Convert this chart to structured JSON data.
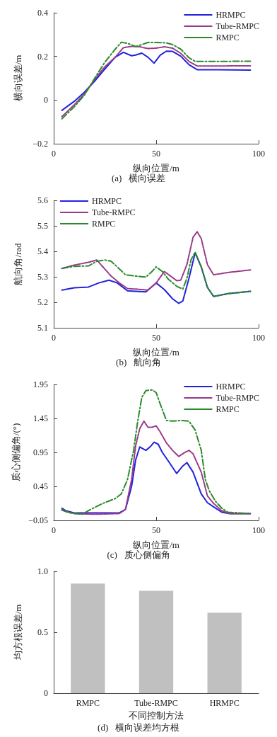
{
  "chart_data": [
    {
      "type": "line",
      "title": "(a)   横向误差",
      "xlabel": "纵向位置/m",
      "ylabel": "横向误差/m",
      "xlim": [
        0,
        100
      ],
      "xticks": [
        0,
        50,
        100
      ],
      "ylim": [
        -0.2,
        0.4
      ],
      "yticks": [
        -0.2,
        0,
        0.2,
        0.4
      ],
      "grid": false,
      "legend": "top right",
      "marker": "none",
      "series": [
        {
          "name": "HRMPC",
          "color": "#2222dd",
          "line_style": "solid",
          "x": [
            4,
            10,
            15,
            20,
            25,
            30,
            34,
            38,
            40,
            43,
            46,
            49,
            52,
            55,
            58,
            62,
            66,
            70,
            80,
            96
          ],
          "values": [
            -0.047,
            -0.006,
            0.036,
            0.087,
            0.143,
            0.196,
            0.219,
            0.203,
            0.206,
            0.215,
            0.196,
            0.169,
            0.206,
            0.224,
            0.223,
            0.201,
            0.162,
            0.139,
            0.139,
            0.137
          ]
        },
        {
          "name": "Tube-RMPC",
          "color": "#993a8a",
          "line_style": "dashed",
          "x": [
            4,
            10,
            15,
            20,
            25,
            30,
            34,
            38,
            42,
            46,
            50,
            54,
            58,
            62,
            66,
            70,
            80,
            96
          ],
          "values": [
            -0.076,
            -0.022,
            0.028,
            0.095,
            0.153,
            0.196,
            0.24,
            0.246,
            0.244,
            0.236,
            0.238,
            0.244,
            0.238,
            0.214,
            0.177,
            0.156,
            0.156,
            0.157
          ]
        },
        {
          "name": "RMPC",
          "color": "#2a8a2a",
          "line_style": "dashdot",
          "x": [
            4,
            10,
            15,
            20,
            25,
            30,
            33,
            36,
            40,
            43,
            46,
            50,
            55,
            58,
            62,
            66,
            69,
            80,
            96
          ],
          "values": [
            -0.086,
            -0.031,
            0.023,
            0.1,
            0.174,
            0.233,
            0.265,
            0.26,
            0.245,
            0.254,
            0.264,
            0.264,
            0.262,
            0.254,
            0.233,
            0.194,
            0.177,
            0.177,
            0.178
          ]
        }
      ]
    },
    {
      "type": "line",
      "title": "(b)   航向角",
      "xlabel": "纵向位置/m",
      "ylabel": "航向角/rad",
      "xlim": [
        0,
        100
      ],
      "xticks": [
        0,
        50,
        100
      ],
      "ylim": [
        5.1,
        5.6
      ],
      "yticks": [
        5.1,
        5.2,
        5.3,
        5.4,
        5.5,
        5.6
      ],
      "grid": false,
      "legend": "top left",
      "marker": "none",
      "series": [
        {
          "name": "HRMPC",
          "color": "#2222dd",
          "line_style": "solid",
          "x": [
            4,
            10,
            17,
            22,
            27,
            31,
            36,
            40,
            45,
            50,
            54,
            58,
            61,
            63,
            66,
            69,
            72,
            75,
            78,
            85,
            96
          ],
          "values": [
            5.248,
            5.257,
            5.26,
            5.276,
            5.287,
            5.276,
            5.245,
            5.243,
            5.241,
            5.276,
            5.25,
            5.214,
            5.196,
            5.205,
            5.294,
            5.394,
            5.339,
            5.259,
            5.223,
            5.234,
            5.243
          ]
        },
        {
          "name": "Tube-RMPC",
          "color": "#993a8a",
          "line_style": "dashed",
          "x": [
            4,
            10,
            17,
            21,
            24,
            28,
            32,
            36,
            40,
            46,
            50,
            54,
            57,
            60,
            62,
            65,
            68,
            70,
            72,
            75,
            78,
            85,
            96
          ],
          "values": [
            5.333,
            5.346,
            5.357,
            5.366,
            5.339,
            5.303,
            5.276,
            5.254,
            5.252,
            5.248,
            5.276,
            5.321,
            5.303,
            5.285,
            5.287,
            5.348,
            5.455,
            5.477,
            5.45,
            5.348,
            5.308,
            5.317,
            5.327
          ]
        },
        {
          "name": "RMPC",
          "color": "#2a8a2a",
          "line_style": "dashdot",
          "x": [
            4,
            10,
            17,
            21,
            25,
            28,
            31,
            35,
            40,
            45,
            48,
            50,
            53,
            56,
            60,
            63,
            65,
            67,
            69,
            72,
            75,
            78,
            85,
            96
          ],
          "values": [
            5.333,
            5.341,
            5.343,
            5.361,
            5.366,
            5.361,
            5.339,
            5.308,
            5.303,
            5.299,
            5.321,
            5.339,
            5.321,
            5.29,
            5.263,
            5.252,
            5.294,
            5.366,
            5.397,
            5.339,
            5.259,
            5.223,
            5.234,
            5.243
          ]
        }
      ]
    },
    {
      "type": "line",
      "title": "(c)   质心侧偏角",
      "xlabel": "纵向位置/m",
      "ylabel": "质心侧偏角/(°)",
      "xlim": [
        0,
        100
      ],
      "xticks": [
        0,
        50,
        100
      ],
      "ylim": [
        -0.05,
        1.95
      ],
      "yticks": [
        -0.05,
        0.45,
        0.95,
        1.45,
        1.95
      ],
      "grid": false,
      "legend": "top right",
      "marker": "none",
      "series": [
        {
          "name": "HRMPC",
          "color": "#2222dd",
          "line_style": "solid",
          "x": [
            4,
            6,
            10,
            20,
            32,
            35,
            38,
            40,
            42,
            45,
            47,
            49,
            51,
            53,
            56,
            60,
            63,
            65,
            68,
            72,
            75,
            78,
            82,
            86,
            96
          ],
          "values": [
            0.13,
            0.09,
            0.06,
            0.06,
            0.06,
            0.11,
            0.45,
            0.84,
            1.03,
            0.98,
            1.03,
            1.1,
            1.07,
            0.95,
            0.82,
            0.64,
            0.75,
            0.8,
            0.66,
            0.34,
            0.21,
            0.15,
            0.07,
            0.05,
            0.05
          ]
        },
        {
          "name": "Tube-RMPC",
          "color": "#993a8a",
          "line_style": "dashed",
          "x": [
            4,
            6,
            10,
            20,
            32,
            35,
            38,
            40,
            42,
            44,
            46,
            48,
            50,
            52,
            55,
            58,
            61,
            64,
            66,
            68,
            72,
            75,
            78,
            82,
            86,
            96
          ],
          "values": [
            0.11,
            0.08,
            0.05,
            0.04,
            0.05,
            0.11,
            0.55,
            1.05,
            1.3,
            1.41,
            1.32,
            1.32,
            1.34,
            1.25,
            1.09,
            0.98,
            0.89,
            0.95,
            0.98,
            0.93,
            0.66,
            0.31,
            0.2,
            0.09,
            0.05,
            0.05
          ]
        },
        {
          "name": "RMPC",
          "color": "#2a8a2a",
          "line_style": "dashdot",
          "x": [
            4,
            8,
            14,
            18,
            24,
            30,
            33,
            36,
            39,
            41,
            43,
            45,
            48,
            50,
            52,
            55,
            58,
            62,
            66,
            69,
            72,
            74,
            76,
            79,
            82,
            85,
            96
          ],
          "values": [
            0.1,
            0.06,
            0.04,
            0.11,
            0.2,
            0.27,
            0.34,
            0.55,
            0.98,
            1.41,
            1.76,
            1.86,
            1.87,
            1.83,
            1.66,
            1.42,
            1.41,
            1.42,
            1.41,
            1.28,
            0.98,
            0.55,
            0.38,
            0.23,
            0.13,
            0.07,
            0.05
          ]
        }
      ]
    },
    {
      "type": "bar",
      "title": "(d)   横向误差均方根",
      "xlabel": "不同控制方法",
      "ylabel": "均方根误差/m",
      "categories": [
        "RMPC",
        "Tube-RMPC",
        "HRMPC"
      ],
      "values": [
        0.9,
        0.84,
        0.66
      ],
      "color": "#c0c0c0",
      "ylim": [
        0,
        1
      ],
      "yticks": [
        0,
        0.5,
        {
          "value": 1,
          "label": "1.0"
        }
      ],
      "grid": false
    }
  ]
}
